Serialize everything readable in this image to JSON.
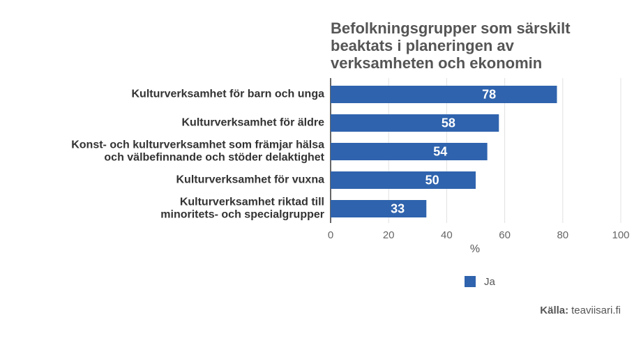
{
  "chart_data": {
    "type": "bar",
    "orientation": "horizontal",
    "title": "Befolkningsgrupper som särskilt\nbeaktats i planeringen av\nverksamheten och ekonomin",
    "categories": [
      "Kulturverksamhet för barn och unga",
      "Kulturverksamhet för äldre",
      "Konst- och kulturverksamhet som främjar hälsa\noch välbefinnande och stöder delaktighet",
      "Kulturverksamhet för vuxna",
      "Kulturverksamhet riktad till\nminoritets- och specialgrupper"
    ],
    "series": [
      {
        "name": "Ja",
        "color": "#2f63ad",
        "values": [
          78,
          58,
          54,
          50,
          33
        ]
      }
    ],
    "xlim": [
      0,
      100
    ],
    "xticks": [
      0,
      20,
      40,
      60,
      80,
      100
    ],
    "x_label": "%",
    "grid": true,
    "source": {
      "label": "Källa:",
      "text": "teaviisari.fi"
    }
  }
}
